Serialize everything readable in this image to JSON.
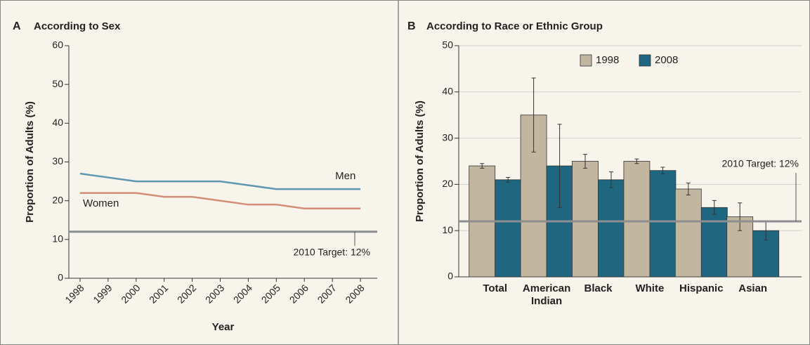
{
  "chart_data": [
    {
      "type": "line",
      "panel": "A",
      "title": "According to Sex",
      "x": [
        1998,
        1999,
        2000,
        2001,
        2002,
        2003,
        2004,
        2005,
        2006,
        2007,
        2008
      ],
      "xlim": [
        1997.6,
        2008.6
      ],
      "xticks": [
        1998,
        1999,
        2000,
        2001,
        2002,
        2003,
        2004,
        2005,
        2006,
        2007,
        2008
      ],
      "ylim": [
        0,
        60
      ],
      "yticks": [
        0,
        10,
        20,
        30,
        40,
        50,
        60
      ],
      "xlabel": "Year",
      "ylabel": "Proportion of Adults (%)",
      "grid": false,
      "series": [
        {
          "name": "Men",
          "color": "#5e97b0",
          "values": [
            27,
            26,
            25,
            25,
            25,
            25,
            24,
            23,
            23,
            23,
            23
          ]
        },
        {
          "name": "Women",
          "color": "#d48d78",
          "values": [
            22,
            22,
            22,
            21,
            21,
            20,
            19,
            19,
            18,
            18,
            18
          ]
        }
      ],
      "target": {
        "value": 12,
        "label": "2010 Target: 12%",
        "color": "#8c8e90"
      }
    },
    {
      "type": "bar",
      "panel": "B",
      "title": "According to Race or Ethnic Group",
      "categories": [
        "Total",
        "American Indian",
        "Black",
        "White",
        "Hispanic",
        "Asian"
      ],
      "ylim": [
        0,
        50
      ],
      "yticks": [
        0,
        10,
        20,
        30,
        40,
        50
      ],
      "ylabel": "Proportion of Adults (%)",
      "grid": true,
      "legend": "top",
      "series": [
        {
          "name": "1998",
          "color": "#c3b6a1",
          "values": [
            24,
            35,
            25,
            25,
            19,
            13
          ],
          "errors": [
            0.5,
            8,
            1.5,
            0.5,
            1.3,
            3
          ]
        },
        {
          "name": "2008",
          "color": "#1f6781",
          "values": [
            21,
            24,
            21,
            23,
            15,
            10
          ],
          "errors": [
            0.5,
            9,
            1.7,
            0.7,
            1.5,
            2
          ]
        }
      ],
      "target": {
        "value": 12,
        "label": "2010 Target: 12%",
        "color": "#8c8e90"
      }
    }
  ]
}
